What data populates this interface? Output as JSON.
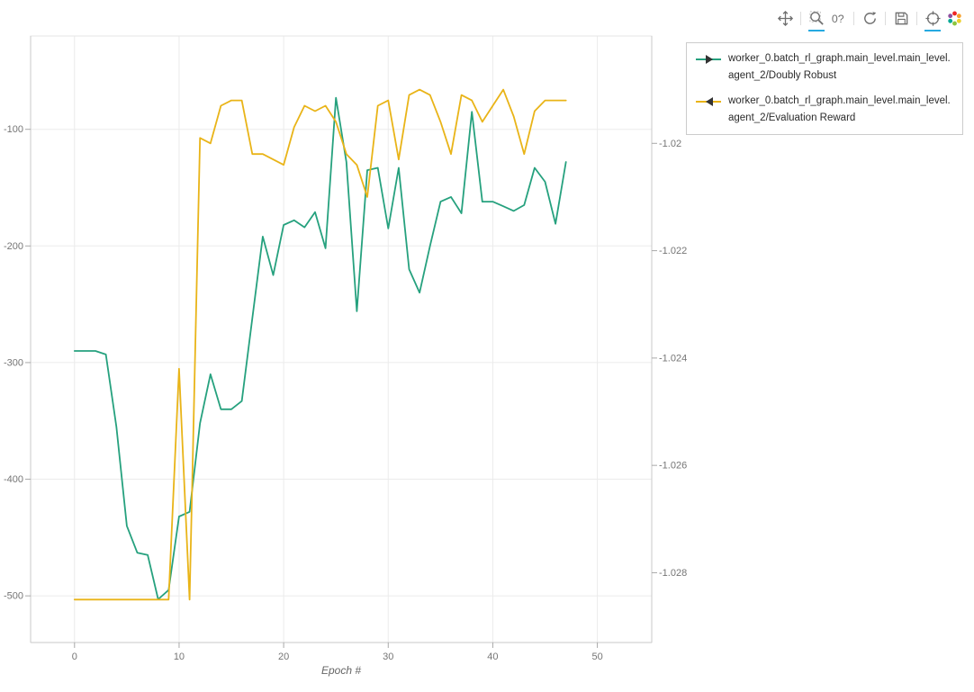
{
  "toolbar": {
    "tools": [
      {
        "name": "pan",
        "icon": "pan-icon",
        "active": false
      },
      {
        "name": "box-zoom",
        "icon": "box-zoom-icon",
        "active": true
      },
      {
        "name": "hover",
        "icon": "hover-icon",
        "active": false
      },
      {
        "name": "reset",
        "icon": "reset-icon",
        "active": false
      },
      {
        "name": "save",
        "icon": "save-icon",
        "active": false
      },
      {
        "name": "crosshair",
        "icon": "crosshair-icon",
        "active": true
      }
    ],
    "hover_glyph": "0?",
    "logo": "bokeh-logo-icon",
    "active_color": "#26aae1"
  },
  "legend": {
    "items": [
      {
        "label": "worker_0.batch_rl_graph.main_level.main_level.agent_2/Doubly Robust",
        "color": "#26a17e",
        "marker": "triangle-right",
        "marker_color": "#333333"
      },
      {
        "label": "worker_0.batch_rl_graph.main_level.main_level.agent_2/Evaluation Reward",
        "color": "#e9b418",
        "marker": "triangle-left",
        "marker_color": "#333333"
      }
    ]
  },
  "chart_data": {
    "type": "line",
    "title": "",
    "xlabel": "Epoch #",
    "grid": true,
    "legend_position": "top-right-outside",
    "x_ticks": [
      0,
      10,
      20,
      30,
      40,
      50
    ],
    "x_range": [
      -4.2,
      55.2
    ],
    "left_axis": {
      "ticks": [
        -100,
        -200,
        -300,
        -400,
        -500
      ],
      "range": [
        -540,
        -20
      ]
    },
    "right_axis": {
      "ticks": [
        -1.02,
        -1.022,
        -1.024,
        -1.026,
        -1.028
      ],
      "tick_labels": [
        "-1.02",
        "-1.022",
        "-1.024",
        "-1.026",
        "-1.028"
      ],
      "range": [
        -1.0293,
        -1.018
      ]
    },
    "series": [
      {
        "name": "worker_0.batch_rl_graph.main_level.main_level.agent_2/Doubly Robust",
        "axis": "left",
        "color": "#26a17e",
        "x": [
          0,
          1,
          2,
          3,
          4,
          5,
          6,
          7,
          8,
          9,
          10,
          11,
          12,
          13,
          14,
          15,
          16,
          17,
          18,
          19,
          20,
          21,
          22,
          23,
          24,
          25,
          26,
          27,
          28,
          29,
          30,
          31,
          32,
          33,
          34,
          35,
          36,
          37,
          38,
          39,
          40,
          41,
          42,
          43,
          44,
          45,
          46,
          47
        ],
        "values": [
          -290,
          -290,
          -290,
          -293,
          -355,
          -440,
          -463,
          -465,
          -503,
          -495,
          -432,
          -428,
          -352,
          -310,
          -340,
          -340,
          -333,
          -262,
          -192,
          -225,
          -182,
          -178,
          -184,
          -171,
          -202,
          -73,
          -128,
          -256,
          -135,
          -133,
          -185,
          -133,
          -220,
          -240,
          -200,
          -162,
          -158,
          -172,
          -85,
          -162,
          -162,
          -166,
          -170,
          -165,
          -133,
          -145,
          -181,
          -128
        ]
      },
      {
        "name": "worker_0.batch_rl_graph.main_level.main_level.agent_2/Evaluation Reward",
        "axis": "right",
        "color": "#e9b418",
        "x": [
          0,
          1,
          2,
          3,
          4,
          5,
          6,
          7,
          8,
          9,
          10,
          11,
          12,
          13,
          14,
          15,
          16,
          17,
          18,
          19,
          20,
          21,
          22,
          23,
          24,
          25,
          26,
          27,
          28,
          29,
          30,
          31,
          32,
          33,
          34,
          35,
          36,
          37,
          38,
          39,
          40,
          41,
          42,
          43,
          44,
          45,
          46,
          47
        ],
        "values": [
          -1.0285,
          -1.0285,
          -1.0285,
          -1.0285,
          -1.0285,
          -1.0285,
          -1.0285,
          -1.0285,
          -1.0285,
          -1.0285,
          -1.0242,
          -1.0285,
          -1.0199,
          -1.02,
          -1.0193,
          -1.0192,
          -1.0192,
          -1.0202,
          -1.0202,
          -1.0203,
          -1.0204,
          -1.0197,
          -1.0193,
          -1.0194,
          -1.0193,
          -1.0196,
          -1.0202,
          -1.0204,
          -1.021,
          -1.0193,
          -1.0192,
          -1.0203,
          -1.0191,
          -1.019,
          -1.0191,
          -1.0196,
          -1.0202,
          -1.0191,
          -1.0192,
          -1.0196,
          -1.0193,
          -1.019,
          -1.0195,
          -1.0202,
          -1.0194,
          -1.0192,
          -1.0192,
          -1.0192
        ]
      }
    ]
  }
}
